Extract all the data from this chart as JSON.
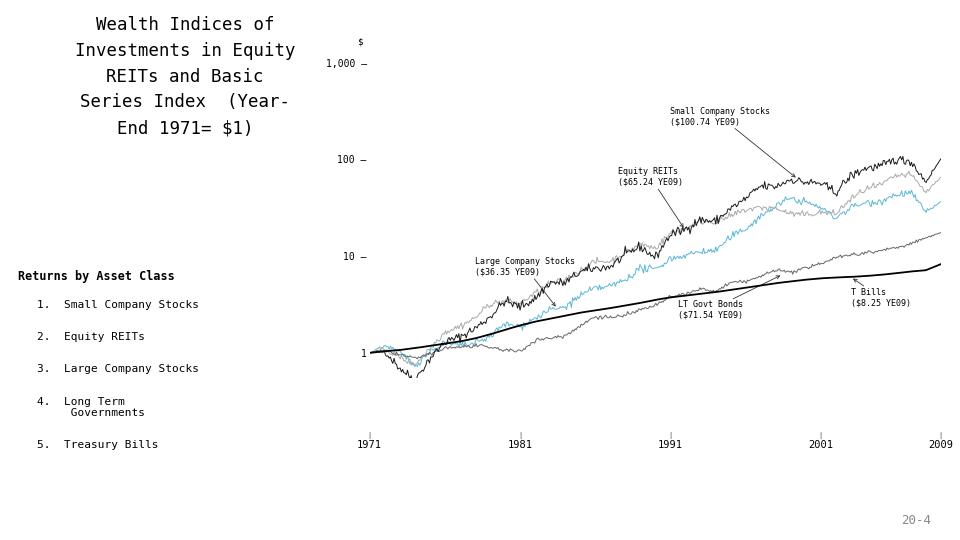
{
  "title": "Wealth Indices of\nInvestments in Equity\nREITs and Basic\nSeries Index  (Year-\nEnd 1971= $1)",
  "returns_label": "Returns by Asset Class",
  "years": [
    1971,
    1972,
    1973,
    1974,
    1975,
    1976,
    1977,
    1978,
    1979,
    1980,
    1981,
    1982,
    1983,
    1984,
    1985,
    1986,
    1987,
    1988,
    1989,
    1990,
    1991,
    1992,
    1993,
    1994,
    1995,
    1996,
    1997,
    1998,
    1999,
    2000,
    2001,
    2002,
    2003,
    2004,
    2005,
    2006,
    2007,
    2008,
    2009
  ],
  "small_stocks": [
    1.0,
    1.04,
    0.7,
    0.52,
    0.87,
    1.29,
    1.46,
    1.78,
    2.35,
    3.44,
    2.98,
    3.62,
    5.35,
    5.27,
    6.85,
    7.46,
    7.75,
    10.23,
    12.57,
    9.6,
    16.65,
    18.86,
    23.72,
    22.77,
    30.8,
    38.77,
    52.63,
    51.95,
    62.08,
    57.72,
    56.4,
    45.29,
    66.93,
    81.04,
    84.27,
    99.7,
    95.96,
    58.44,
    100.74
  ],
  "equity_reits": [
    1.0,
    1.09,
    0.9,
    0.76,
    1.11,
    1.64,
    1.88,
    2.28,
    3.22,
    3.39,
    3.25,
    4.11,
    5.14,
    5.68,
    7.08,
    8.77,
    8.82,
    10.75,
    13.32,
    12.05,
    17.07,
    19.49,
    22.92,
    22.57,
    25.66,
    30.07,
    31.72,
    31.2,
    27.44,
    26.66,
    28.25,
    27.3,
    38.58,
    49.17,
    53.85,
    67.26,
    69.47,
    45.63,
    65.24
  ],
  "large_stocks": [
    1.0,
    1.19,
    1.01,
    0.74,
    1.02,
    1.27,
    1.18,
    1.25,
    1.48,
    1.97,
    1.87,
    2.27,
    2.78,
    2.96,
    3.9,
    4.63,
    4.87,
    5.68,
    7.48,
    7.24,
    9.43,
    10.16,
    11.18,
    11.32,
    15.56,
    19.12,
    25.52,
    32.81,
    39.68,
    36.07,
    31.79,
    24.76,
    31.88,
    35.38,
    37.09,
    42.97,
    45.34,
    28.6,
    36.35
  ],
  "lt_govt": [
    1.0,
    1.06,
    0.96,
    0.88,
    0.96,
    1.12,
    1.15,
    1.18,
    1.14,
    1.07,
    1.03,
    1.35,
    1.42,
    1.5,
    1.9,
    2.37,
    2.33,
    2.44,
    2.77,
    3.09,
    3.75,
    4.06,
    4.56,
    4.29,
    5.3,
    5.46,
    6.12,
    7.22,
    6.8,
    7.46,
    8.35,
    9.8,
    10.26,
    10.86,
    11.47,
    12.17,
    13.41,
    15.36,
    17.5
  ],
  "t_bills": [
    1.0,
    1.04,
    1.07,
    1.12,
    1.18,
    1.24,
    1.31,
    1.41,
    1.55,
    1.73,
    1.92,
    2.1,
    2.25,
    2.42,
    2.6,
    2.75,
    2.9,
    3.08,
    3.28,
    3.53,
    3.74,
    3.9,
    4.06,
    4.24,
    4.47,
    4.7,
    4.98,
    5.24,
    5.47,
    5.7,
    5.89,
    6.01,
    6.09,
    6.22,
    6.4,
    6.64,
    6.93,
    7.14,
    8.25
  ],
  "color_small": "#1a1a1a",
  "color_reits": "#aaaaaa",
  "color_large": "#5bb8d4",
  "color_ltgovt": "#666666",
  "color_tbills": "#000000",
  "xticks": [
    1971,
    1981,
    1991,
    2001,
    2009
  ],
  "page_number": "20-4",
  "background_color": "#ffffff"
}
